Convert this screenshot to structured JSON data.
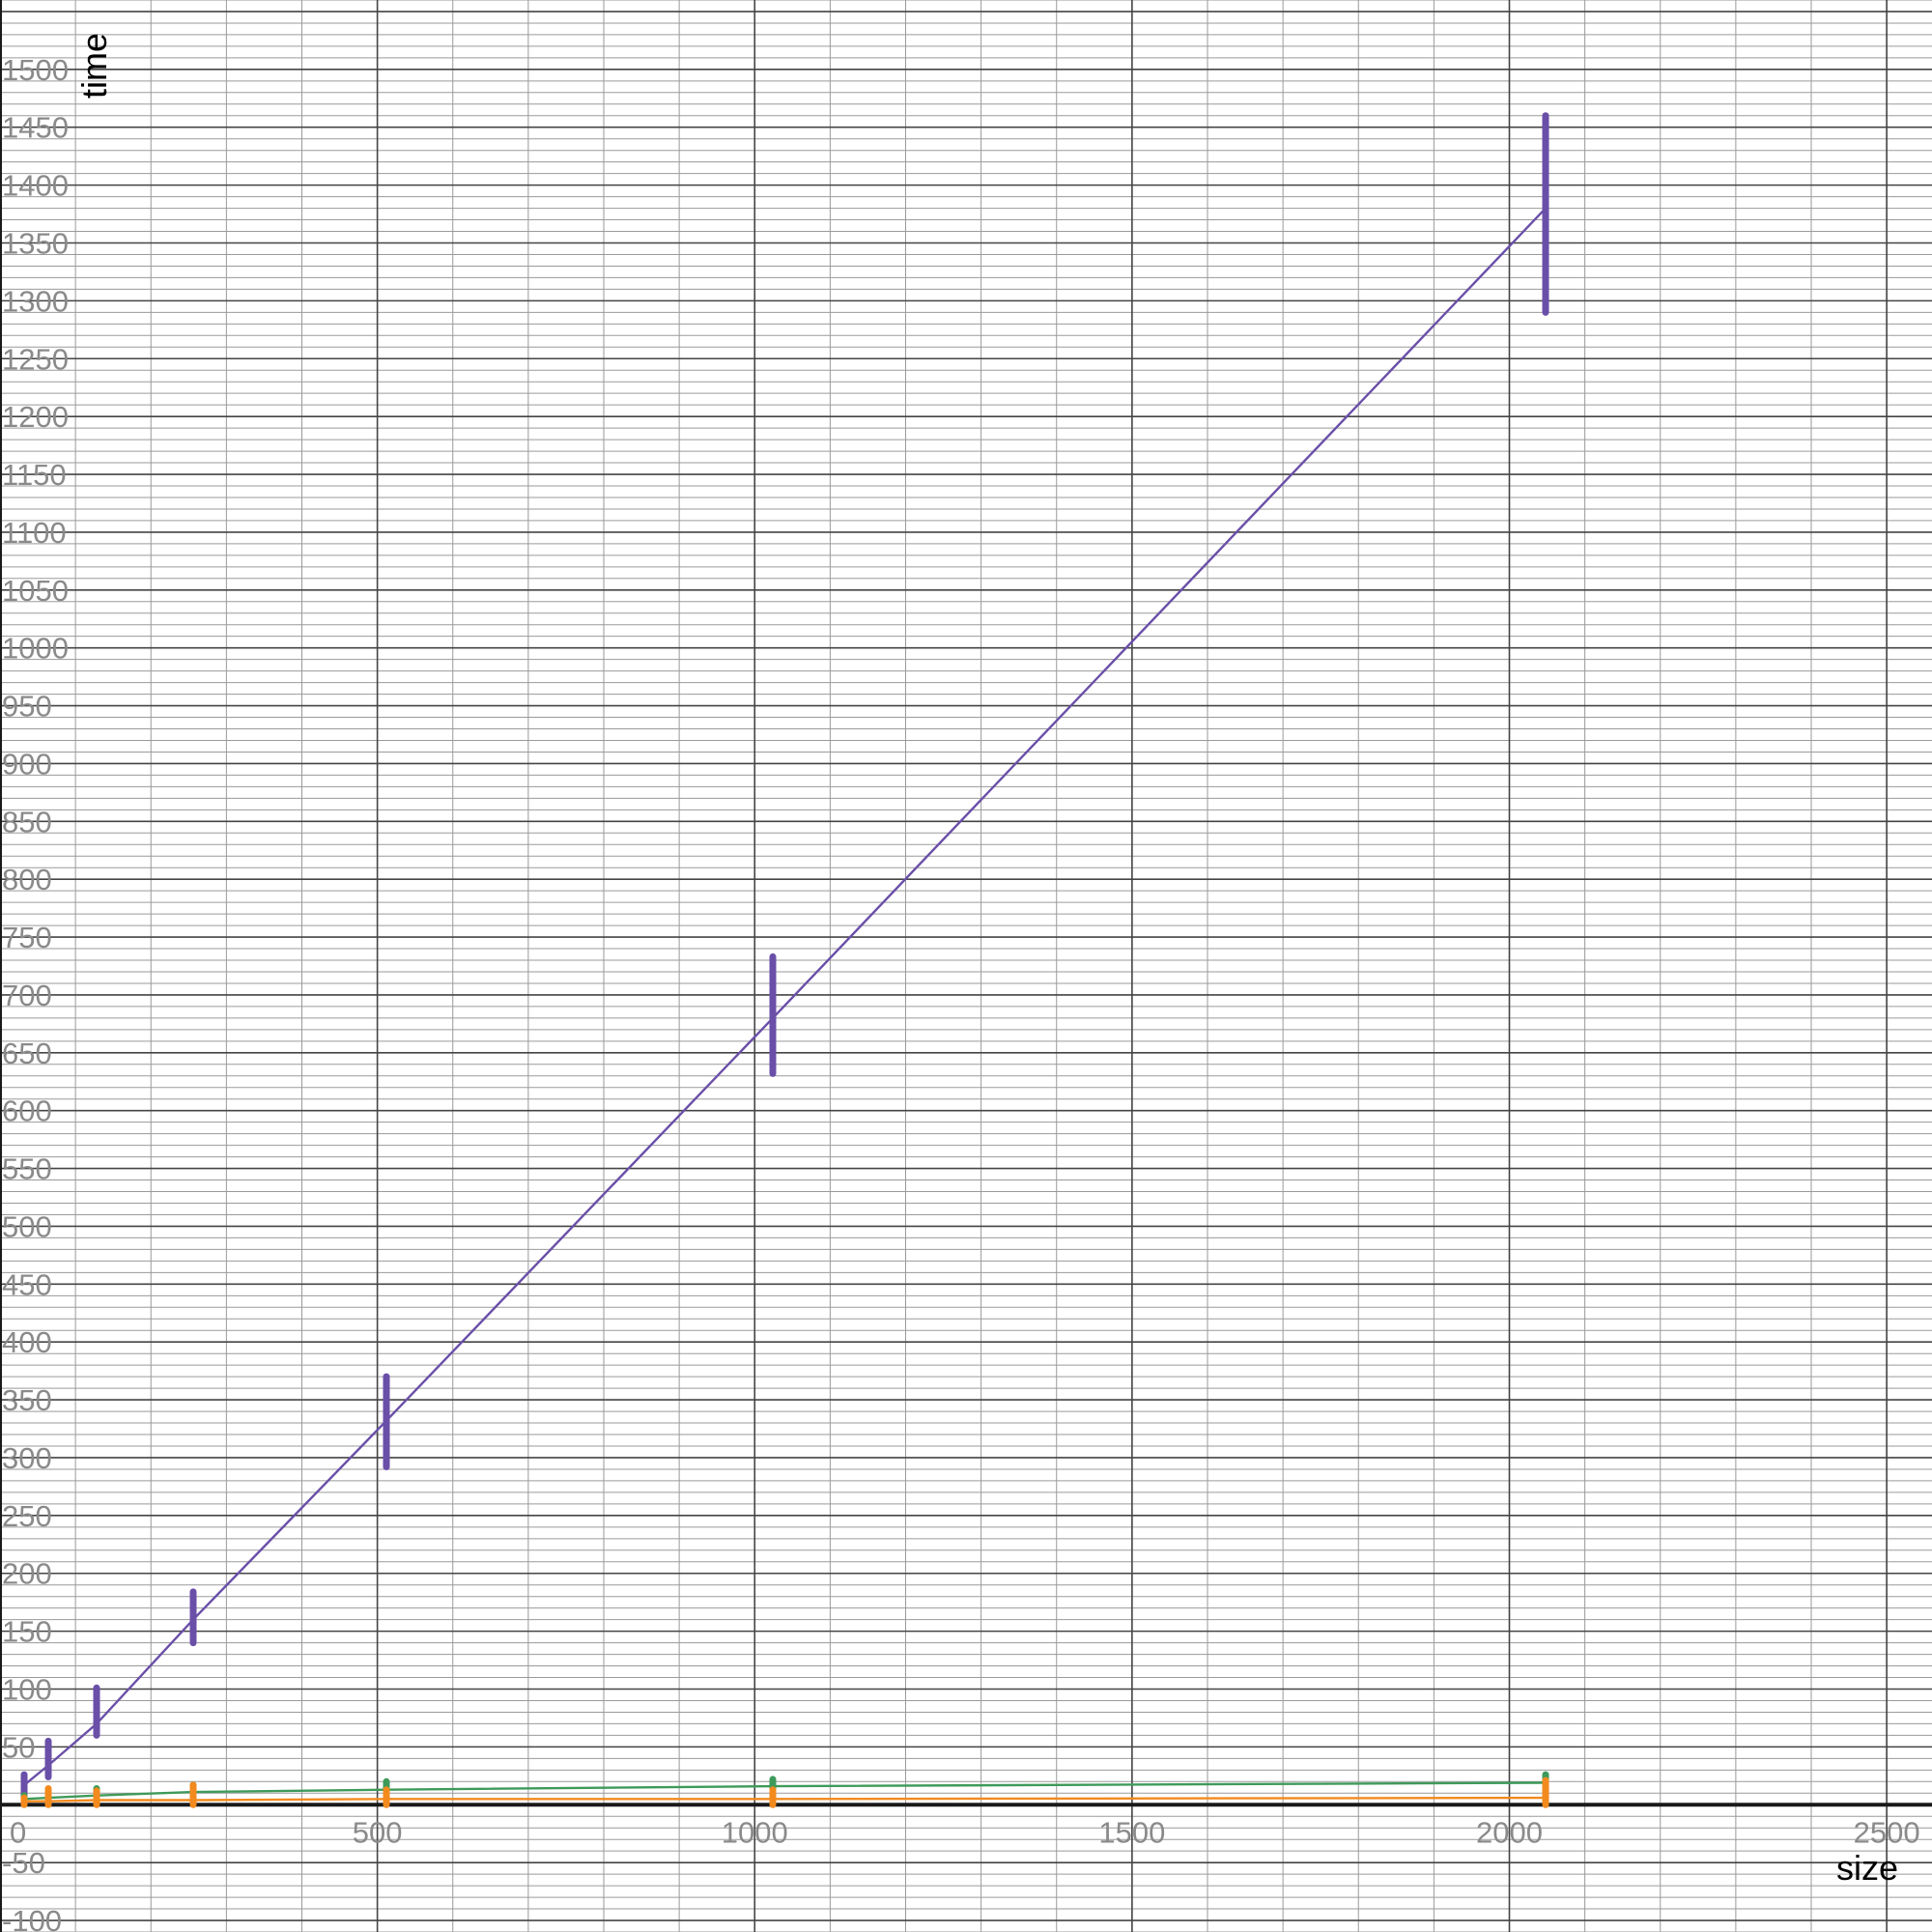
{
  "chart_data": {
    "type": "scatter",
    "title": "",
    "xlabel": "size",
    "ylabel": "time",
    "xlim": [
      0,
      2560
    ],
    "ylim": [
      -110,
      1560
    ],
    "grid": true,
    "x_major_step": 500,
    "x_minor_step": 100,
    "y_major_step": 50,
    "y_minor_step": 10,
    "x_ticks": [
      "0",
      "500",
      "1000",
      "1500",
      "2000",
      "2500"
    ],
    "y_ticks": [
      "-100",
      "-50",
      "50",
      "100",
      "150",
      "200",
      "250",
      "300",
      "350",
      "400",
      "450",
      "500",
      "550",
      "600",
      "650",
      "700",
      "750",
      "800",
      "850",
      "900",
      "950",
      "1000",
      "1050",
      "1100",
      "1150",
      "1200",
      "1250",
      "1300",
      "1350",
      "1400",
      "1450",
      "1500"
    ],
    "series": [
      {
        "color": "#6a4fa8",
        "x": [
          32,
          64,
          128,
          256,
          512,
          1024,
          2048
        ],
        "line": [
          17,
          34,
          70,
          160,
          332,
          680,
          1380
        ],
        "low": [
          6,
          24,
          60,
          140,
          292,
          632,
          1290
        ],
        "high": [
          26,
          55,
          101,
          184,
          370,
          733,
          1460
        ]
      },
      {
        "color": "#3e9a5a",
        "x": [
          32,
          64,
          128,
          256,
          512,
          1024,
          2048
        ],
        "line": [
          5,
          6,
          8,
          11,
          13,
          16,
          19
        ],
        "low": [
          2,
          3,
          4,
          6,
          8,
          10,
          12
        ],
        "high": [
          8,
          11,
          14,
          17,
          20,
          22,
          26
        ]
      },
      {
        "color": "#f28a1e",
        "x": [
          32,
          64,
          128,
          256,
          512,
          1024,
          2048
        ],
        "line": [
          3,
          3,
          4,
          4,
          5,
          5,
          6
        ],
        "low": [
          0,
          0,
          0,
          0,
          0,
          0,
          0
        ],
        "high": [
          6,
          14,
          12,
          17,
          13,
          13,
          21
        ]
      }
    ]
  }
}
